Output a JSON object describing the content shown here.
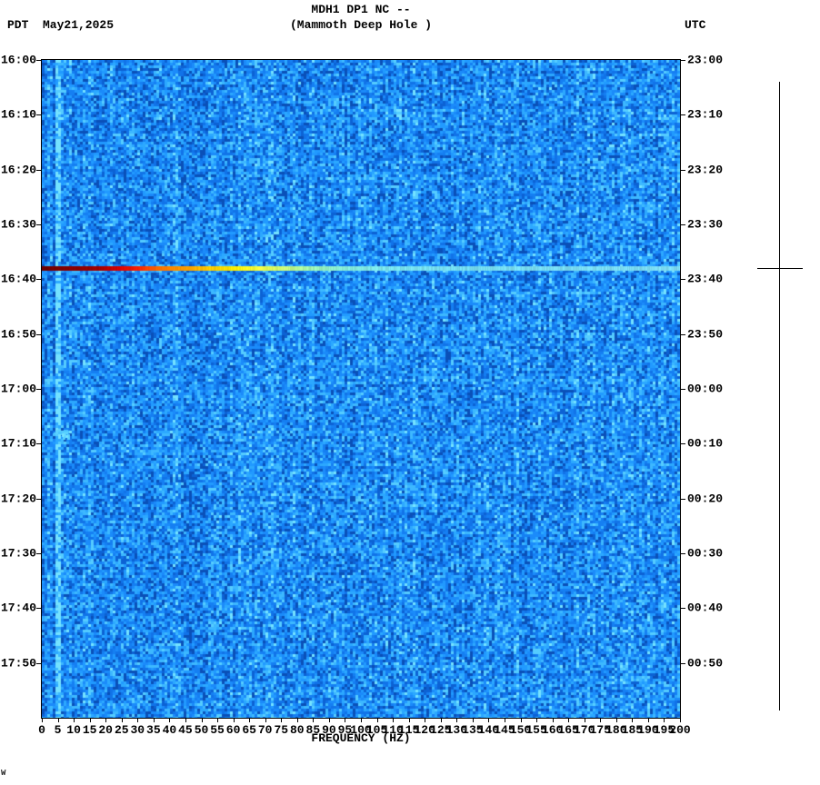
{
  "header": {
    "title_line1": "MDH1 DP1 NC --",
    "title_line2": "(Mammoth Deep Hole )",
    "tz_left": "PDT",
    "date": "May21,2025",
    "tz_right": "UTC"
  },
  "footer_mark": "W",
  "chart_data": {
    "type": "heatmap",
    "subtype": "seismic-spectrogram",
    "title": "MDH1 DP1 NC -- (Mammoth Deep Hole )",
    "xlabel": "FREQUENCY (HZ)",
    "x_range": [
      0,
      200
    ],
    "x_ticks": [
      0,
      5,
      10,
      15,
      20,
      25,
      30,
      35,
      40,
      45,
      50,
      55,
      60,
      65,
      70,
      75,
      80,
      85,
      90,
      95,
      100,
      105,
      110,
      115,
      120,
      125,
      130,
      135,
      140,
      145,
      150,
      155,
      160,
      165,
      170,
      175,
      180,
      185,
      190,
      195,
      200
    ],
    "duration_minutes": 120,
    "time_start_pdt": "16:00",
    "y_axis_left": {
      "timezone": "PDT",
      "ticks": [
        "16:00",
        "16:10",
        "16:20",
        "16:30",
        "16:40",
        "16:50",
        "17:00",
        "17:10",
        "17:20",
        "17:30",
        "17:40",
        "17:50"
      ]
    },
    "y_axis_right": {
      "timezone": "UTC",
      "ticks": [
        "23:00",
        "23:10",
        "23:20",
        "23:30",
        "23:40",
        "23:50",
        "00:00",
        "00:10",
        "00:20",
        "00:30",
        "00:40",
        "00:50"
      ]
    },
    "grid": "off",
    "legend": "none",
    "noise_palette": [
      "#0a50b8",
      "#0c62d4",
      "#1173e8",
      "#157ff2",
      "#1b8bfa",
      "#219aff",
      "#2ca8ff",
      "#3db8ff",
      "#55ccff",
      "#74e2ff"
    ],
    "features": {
      "column_stripes": [
        {
          "from_hz": 0,
          "to_hz": 1.2,
          "bias": -0.08,
          "desc": "slightly darker left edge"
        },
        {
          "from_hz": 3.2,
          "to_hz": 4.6,
          "bias": -0.22,
          "desc": "dark band near 4 Hz"
        },
        {
          "from_hz": 4.7,
          "to_hz": 6.0,
          "bias": 0.45,
          "desc": "persistent bright spectral line near 5.5 Hz"
        },
        {
          "from_hz": 61.3,
          "to_hz": 62.6,
          "bias": 0.12,
          "desc": "faint bright line near 62 Hz"
        }
      ],
      "event": {
        "time_pdt": "16:38",
        "time_utc": "23:38",
        "desc": "broadband event line across 0-200 Hz, hot colors at low frequency cooling to cyan at high frequency",
        "gradient_stops": [
          [
            0,
            "#6e0000"
          ],
          [
            10,
            "#8b0000"
          ],
          [
            18,
            "#a30000"
          ],
          [
            24,
            "#d40000"
          ],
          [
            30,
            "#ff2000"
          ],
          [
            36,
            "#ff6a00"
          ],
          [
            44,
            "#ff9900"
          ],
          [
            52,
            "#ffc800"
          ],
          [
            60,
            "#ffee00"
          ],
          [
            68,
            "#f4ff40"
          ],
          [
            76,
            "#c8fa78"
          ],
          [
            85,
            "#9cf2b4"
          ],
          [
            95,
            "#84ead8"
          ],
          [
            108,
            "#78e2ec"
          ],
          [
            130,
            "#74dcf0"
          ],
          [
            200,
            "#7cdaf2"
          ]
        ]
      },
      "minor_blob": {
        "time_pdt": "17:08",
        "freq_from_hz": 3.5,
        "freq_to_hz": 8,
        "desc": "small bright cyan patch on the 5.5 Hz line"
      }
    }
  },
  "scale_bar": {
    "desc": "vertical reference line at right with tick at event time"
  }
}
